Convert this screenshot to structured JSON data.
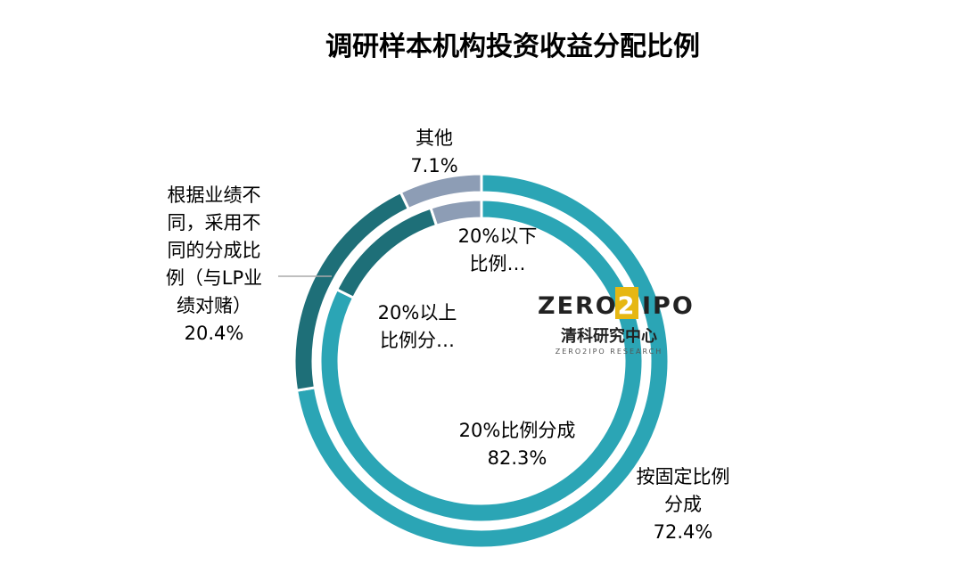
{
  "chart_data": {
    "type": "pie",
    "title": "调研样本机构投资收益分配比例",
    "rings": [
      {
        "ring": "outer",
        "slices": [
          {
            "label_lines": [
              "按固定比例",
              "分成"
            ],
            "value_label": "72.4%",
            "value": 72.4,
            "color": "#2ba5b5"
          },
          {
            "label_lines": [
              "根据业绩不",
              "同，采用不",
              "同的分成比",
              "例（与LP业",
              "绩对赌）"
            ],
            "value_label": "20.4%",
            "value": 20.4,
            "color": "#1e6f78"
          },
          {
            "label_lines": [
              "其他"
            ],
            "value_label": "7.1%",
            "value": 7.1,
            "color": "#8d9db5"
          }
        ]
      },
      {
        "ring": "inner",
        "slices": [
          {
            "label_lines": [
              "20%比例分成"
            ],
            "value_label": "82.3%",
            "value": 82.3,
            "color": "#2ba5b5"
          },
          {
            "label_lines": [
              "20%以上",
              "比例分…"
            ],
            "value_label": "",
            "value": 12.6,
            "color": "#1e6f78"
          },
          {
            "label_lines": [
              "20%以下",
              "比例…"
            ],
            "value_label": "",
            "value": 5.1,
            "color": "#8d9db5"
          }
        ]
      }
    ]
  },
  "watermark": {
    "logo_text": "ZERO2IPO",
    "logo_left": "ZERO",
    "logo_digit": "2",
    "logo_right": "IPO",
    "cn_text": "清科研究中心",
    "sub_text": "ZERO2IPO RESEARCH"
  }
}
